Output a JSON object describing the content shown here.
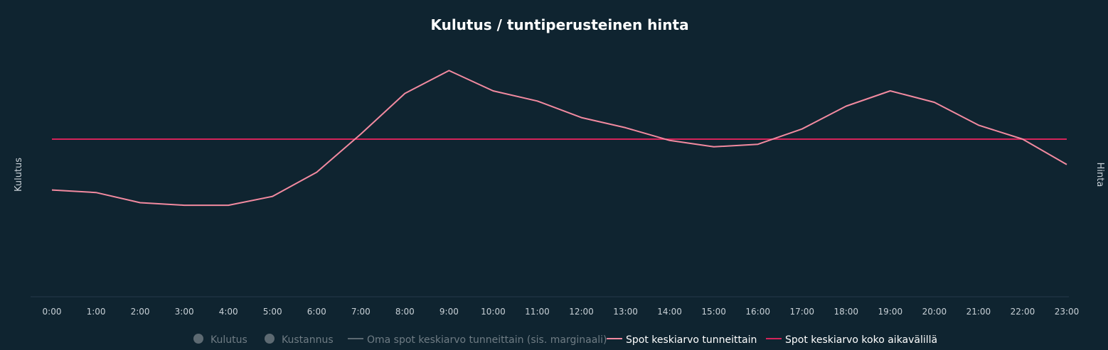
{
  "chart_data": {
    "type": "line",
    "title": "Kulutus / tuntiperusteinen hinta",
    "ylabel_left": "Kulutus",
    "ylabel_right": "Hinta",
    "x": [
      "0:00",
      "1:00",
      "2:00",
      "3:00",
      "4:00",
      "5:00",
      "6:00",
      "7:00",
      "8:00",
      "9:00",
      "10:00",
      "11:00",
      "12:00",
      "13:00",
      "14:00",
      "15:00",
      "16:00",
      "17:00",
      "18:00",
      "19:00",
      "20:00",
      "21:00",
      "22:00",
      "23:00"
    ],
    "ylim": [
      0,
      10
    ],
    "grid": false,
    "legend_placement": "bottom-center",
    "series": [
      {
        "name": "Spot keskiarvo tunneittain",
        "color": "#f28aa0",
        "values": [
          4.2,
          4.1,
          3.7,
          3.6,
          3.6,
          3.95,
          4.9,
          6.4,
          8.0,
          8.9,
          8.1,
          7.7,
          7.05,
          6.65,
          6.15,
          5.9,
          6.0,
          6.6,
          7.5,
          8.1,
          7.65,
          6.75,
          6.2,
          5.2
        ]
      },
      {
        "name": "Spot keskiarvo koko aikavälillä",
        "color": "#d4245a",
        "values": [
          6.2,
          6.2,
          6.2,
          6.2,
          6.2,
          6.2,
          6.2,
          6.2,
          6.2,
          6.2,
          6.2,
          6.2,
          6.2,
          6.2,
          6.2,
          6.2,
          6.2,
          6.2,
          6.2,
          6.2,
          6.2,
          6.2,
          6.2,
          6.2
        ]
      }
    ],
    "legend": [
      {
        "name": "Kulutus",
        "symbol": "circle",
        "color": "#5d6a72",
        "active": false
      },
      {
        "name": "Kustannus",
        "symbol": "circle",
        "color": "#5d6a72",
        "active": false
      },
      {
        "name": "Oma spot keskiarvo tunneittain (sis. marginaali)",
        "symbol": "line",
        "color": "#5d6a72",
        "active": false
      },
      {
        "name": "Spot keskiarvo tunneittain",
        "symbol": "line",
        "color": "#f28aa0",
        "active": true
      },
      {
        "name": "Spot keskiarvo koko aikavälillä",
        "symbol": "line",
        "color": "#d4245a",
        "active": true
      }
    ]
  }
}
